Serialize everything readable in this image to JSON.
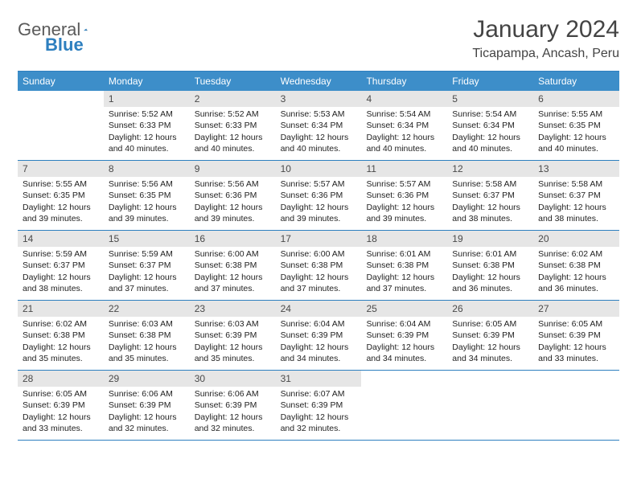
{
  "brand": {
    "general": "General",
    "blue": "Blue"
  },
  "title": "January 2024",
  "location": "Ticapampa, Ancash, Peru",
  "colors": {
    "header_bg": "#3d8ec9",
    "header_text": "#ffffff",
    "border": "#2d7fbf",
    "daynum_bg": "#e6e6e6",
    "daynum_text": "#4a4a4a",
    "body_text": "#222222",
    "title_text": "#444444"
  },
  "weekdays": [
    "Sunday",
    "Monday",
    "Tuesday",
    "Wednesday",
    "Thursday",
    "Friday",
    "Saturday"
  ],
  "first_weekday_index": 1,
  "days": [
    {
      "n": 1,
      "sunrise": "5:52 AM",
      "sunset": "6:33 PM",
      "dh": 12,
      "dm": 40
    },
    {
      "n": 2,
      "sunrise": "5:52 AM",
      "sunset": "6:33 PM",
      "dh": 12,
      "dm": 40
    },
    {
      "n": 3,
      "sunrise": "5:53 AM",
      "sunset": "6:34 PM",
      "dh": 12,
      "dm": 40
    },
    {
      "n": 4,
      "sunrise": "5:54 AM",
      "sunset": "6:34 PM",
      "dh": 12,
      "dm": 40
    },
    {
      "n": 5,
      "sunrise": "5:54 AM",
      "sunset": "6:34 PM",
      "dh": 12,
      "dm": 40
    },
    {
      "n": 6,
      "sunrise": "5:55 AM",
      "sunset": "6:35 PM",
      "dh": 12,
      "dm": 40
    },
    {
      "n": 7,
      "sunrise": "5:55 AM",
      "sunset": "6:35 PM",
      "dh": 12,
      "dm": 39
    },
    {
      "n": 8,
      "sunrise": "5:56 AM",
      "sunset": "6:35 PM",
      "dh": 12,
      "dm": 39
    },
    {
      "n": 9,
      "sunrise": "5:56 AM",
      "sunset": "6:36 PM",
      "dh": 12,
      "dm": 39
    },
    {
      "n": 10,
      "sunrise": "5:57 AM",
      "sunset": "6:36 PM",
      "dh": 12,
      "dm": 39
    },
    {
      "n": 11,
      "sunrise": "5:57 AM",
      "sunset": "6:36 PM",
      "dh": 12,
      "dm": 39
    },
    {
      "n": 12,
      "sunrise": "5:58 AM",
      "sunset": "6:37 PM",
      "dh": 12,
      "dm": 38
    },
    {
      "n": 13,
      "sunrise": "5:58 AM",
      "sunset": "6:37 PM",
      "dh": 12,
      "dm": 38
    },
    {
      "n": 14,
      "sunrise": "5:59 AM",
      "sunset": "6:37 PM",
      "dh": 12,
      "dm": 38
    },
    {
      "n": 15,
      "sunrise": "5:59 AM",
      "sunset": "6:37 PM",
      "dh": 12,
      "dm": 37
    },
    {
      "n": 16,
      "sunrise": "6:00 AM",
      "sunset": "6:38 PM",
      "dh": 12,
      "dm": 37
    },
    {
      "n": 17,
      "sunrise": "6:00 AM",
      "sunset": "6:38 PM",
      "dh": 12,
      "dm": 37
    },
    {
      "n": 18,
      "sunrise": "6:01 AM",
      "sunset": "6:38 PM",
      "dh": 12,
      "dm": 37
    },
    {
      "n": 19,
      "sunrise": "6:01 AM",
      "sunset": "6:38 PM",
      "dh": 12,
      "dm": 36
    },
    {
      "n": 20,
      "sunrise": "6:02 AM",
      "sunset": "6:38 PM",
      "dh": 12,
      "dm": 36
    },
    {
      "n": 21,
      "sunrise": "6:02 AM",
      "sunset": "6:38 PM",
      "dh": 12,
      "dm": 35
    },
    {
      "n": 22,
      "sunrise": "6:03 AM",
      "sunset": "6:38 PM",
      "dh": 12,
      "dm": 35
    },
    {
      "n": 23,
      "sunrise": "6:03 AM",
      "sunset": "6:39 PM",
      "dh": 12,
      "dm": 35
    },
    {
      "n": 24,
      "sunrise": "6:04 AM",
      "sunset": "6:39 PM",
      "dh": 12,
      "dm": 34
    },
    {
      "n": 25,
      "sunrise": "6:04 AM",
      "sunset": "6:39 PM",
      "dh": 12,
      "dm": 34
    },
    {
      "n": 26,
      "sunrise": "6:05 AM",
      "sunset": "6:39 PM",
      "dh": 12,
      "dm": 34
    },
    {
      "n": 27,
      "sunrise": "6:05 AM",
      "sunset": "6:39 PM",
      "dh": 12,
      "dm": 33
    },
    {
      "n": 28,
      "sunrise": "6:05 AM",
      "sunset": "6:39 PM",
      "dh": 12,
      "dm": 33
    },
    {
      "n": 29,
      "sunrise": "6:06 AM",
      "sunset": "6:39 PM",
      "dh": 12,
      "dm": 32
    },
    {
      "n": 30,
      "sunrise": "6:06 AM",
      "sunset": "6:39 PM",
      "dh": 12,
      "dm": 32
    },
    {
      "n": 31,
      "sunrise": "6:07 AM",
      "sunset": "6:39 PM",
      "dh": 12,
      "dm": 32
    }
  ],
  "labels": {
    "sunrise": "Sunrise:",
    "sunset": "Sunset:",
    "daylight": "Daylight:",
    "hours": "hours",
    "and": "and",
    "minutes": "minutes."
  }
}
